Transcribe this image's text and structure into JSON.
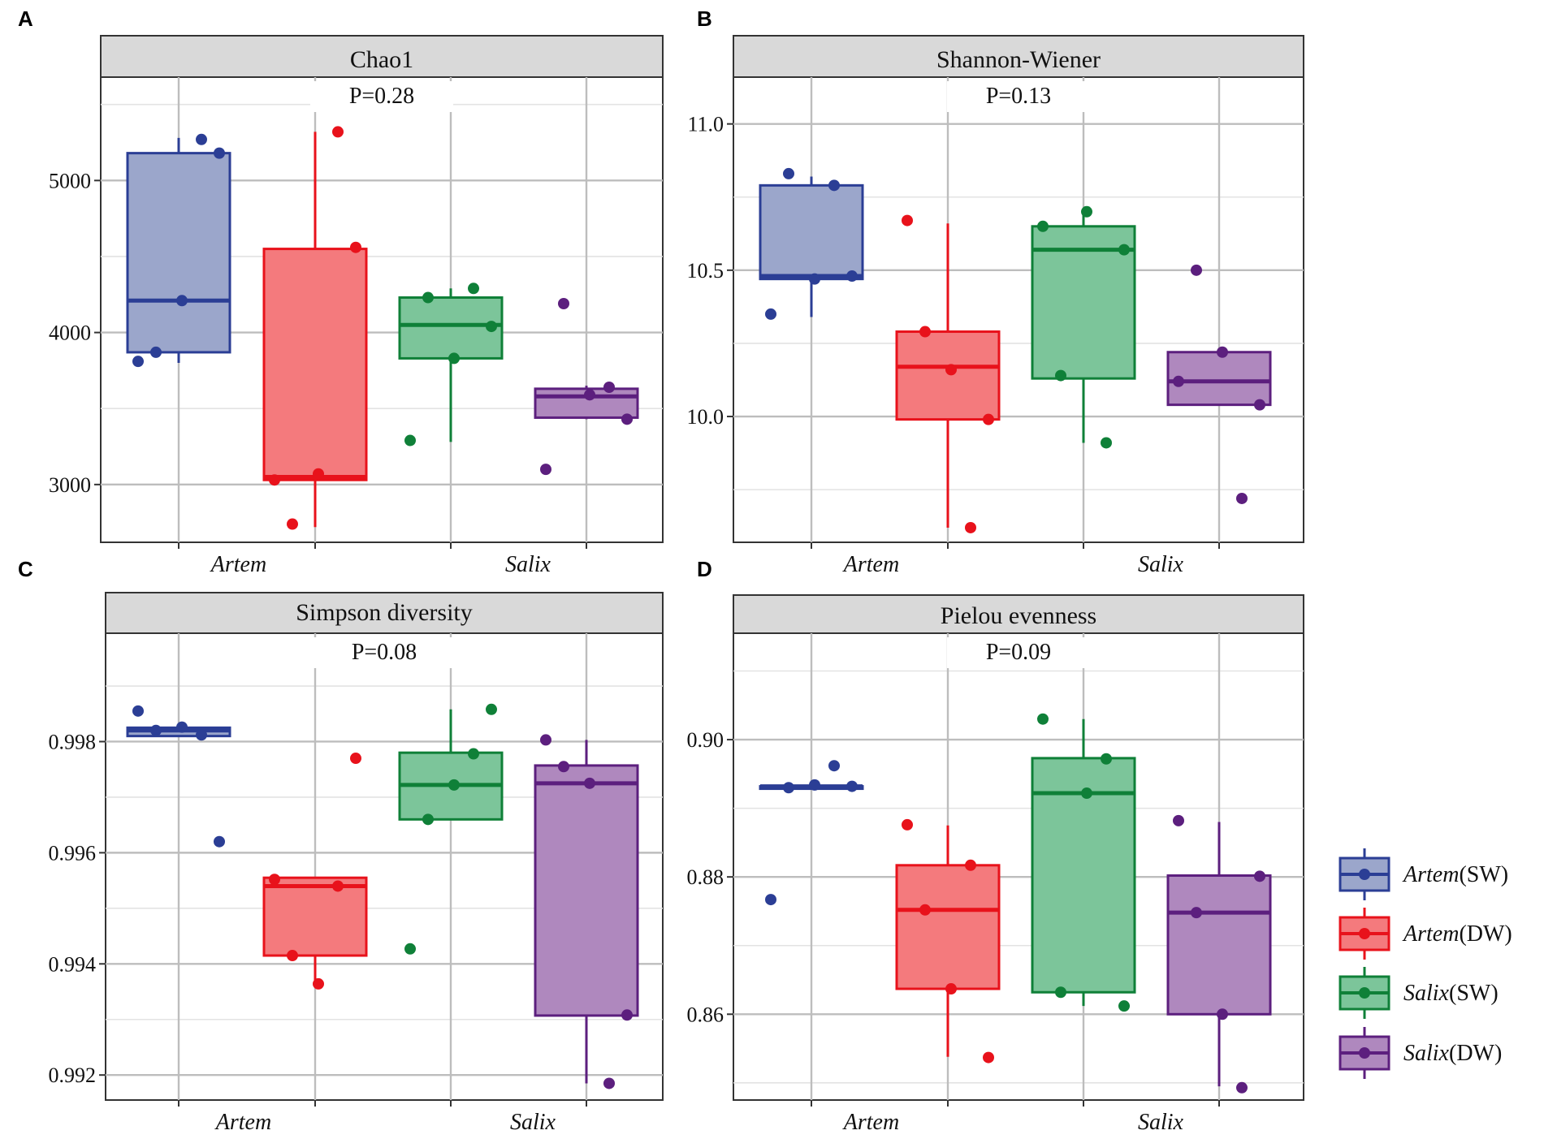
{
  "colors": {
    "artem_sw": "#2B3E95",
    "artem_dw": "#E8121B",
    "salix_sw": "#0F8038",
    "salix_dw": "#5C1F7E",
    "fill_artem_sw": "#9BA6CB",
    "fill_artem_dw": "#F47A7D",
    "fill_salix_sw": "#7CC59A",
    "fill_salix_dw": "#AF88BE"
  },
  "legend": {
    "items": [
      {
        "label_italic": "Artem",
        "label_rest": "(SW)",
        "color_key": "artem_sw"
      },
      {
        "label_italic": "Artem",
        "label_rest": "(DW)",
        "color_key": "artem_dw"
      },
      {
        "label_italic": "Salix",
        "label_rest": "(SW)",
        "color_key": "salix_sw"
      },
      {
        "label_italic": "Salix",
        "label_rest": "(DW)",
        "color_key": "salix_dw"
      }
    ]
  },
  "chart_data": [
    {
      "type": "box",
      "panel_letter": "A",
      "title": "Chao1",
      "p_value": "P=0.28",
      "categories": [
        "Artem",
        "Salix"
      ],
      "ylim": [
        2620,
        5680
      ],
      "yticks": [
        3000,
        4000,
        5000
      ],
      "ytick_labels": [
        "3000",
        "4000",
        "5000"
      ],
      "series": [
        {
          "name": "Artem(SW)",
          "color_key": "artem_sw",
          "box": {
            "min": 3800,
            "q1": 3870,
            "median": 4210,
            "q3": 5180,
            "max": 5280
          },
          "points": [
            3810,
            3870,
            5270,
            5180,
            4210
          ]
        },
        {
          "name": "Artem(DW)",
          "color_key": "artem_dw",
          "box": {
            "min": 2720,
            "q1": 3030,
            "median": 3050,
            "q3": 4550,
            "max": 5320
          },
          "points": [
            3030,
            2740,
            5320,
            4560,
            3070
          ]
        },
        {
          "name": "Salix(SW)",
          "color_key": "salix_sw",
          "box": {
            "min": 3280,
            "q1": 3830,
            "median": 4050,
            "q3": 4230,
            "max": 4290
          },
          "points": [
            3290,
            4230,
            4290,
            4040,
            3830
          ]
        },
        {
          "name": "Salix(DW)",
          "color_key": "salix_dw",
          "box": {
            "min": 3430,
            "q1": 3440,
            "median": 3580,
            "q3": 3630,
            "max": 3650
          },
          "points": [
            3100,
            4190,
            3640,
            3430,
            3590
          ]
        }
      ]
    },
    {
      "type": "box",
      "panel_letter": "B",
      "title": "Shannon-Wiener",
      "p_value": "P=0.13",
      "categories": [
        "Artem",
        "Salix"
      ],
      "ylim": [
        9.57,
        11.16
      ],
      "yticks": [
        10.0,
        10.5,
        11.0
      ],
      "ytick_labels": [
        "10.0",
        "10.5",
        "11.0"
      ],
      "series": [
        {
          "name": "Artem(SW)",
          "color_key": "artem_sw",
          "box": {
            "min": 10.34,
            "q1": 10.47,
            "median": 10.48,
            "q3": 10.79,
            "max": 10.82
          },
          "points": [
            10.35,
            10.83,
            10.79,
            10.48,
            10.47
          ]
        },
        {
          "name": "Artem(DW)",
          "color_key": "artem_dw",
          "box": {
            "min": 9.62,
            "q1": 9.99,
            "median": 10.17,
            "q3": 10.29,
            "max": 10.66
          },
          "points": [
            10.67,
            10.29,
            9.62,
            9.99,
            10.16
          ]
        },
        {
          "name": "Salix(SW)",
          "color_key": "salix_sw",
          "box": {
            "min": 9.91,
            "q1": 10.13,
            "median": 10.57,
            "q3": 10.65,
            "max": 10.7
          },
          "points": [
            10.65,
            10.14,
            9.91,
            10.57,
            10.7
          ]
        },
        {
          "name": "Salix(DW)",
          "color_key": "salix_dw",
          "box": {
            "min": 10.04,
            "q1": 10.04,
            "median": 10.12,
            "q3": 10.22,
            "max": 10.22
          },
          "points": [
            10.12,
            10.5,
            9.72,
            10.04,
            10.22
          ]
        }
      ]
    },
    {
      "type": "box",
      "panel_letter": "C",
      "title": "Simpson diversity",
      "p_value": "P=0.08",
      "categories": [
        "Artem",
        "Salix"
      ],
      "ylim": [
        0.99155,
        0.99995
      ],
      "yticks": [
        0.992,
        0.994,
        0.996,
        0.998
      ],
      "ytick_labels": [
        "0.992",
        "0.994",
        "0.996",
        "0.998"
      ],
      "series": [
        {
          "name": "Artem(SW)",
          "color_key": "artem_sw",
          "box": {
            "min": 0.9981,
            "q1": 0.9981,
            "median": 0.9982,
            "q3": 0.99825,
            "max": 0.99825
          },
          "points": [
            0.99855,
            0.9982,
            0.99812,
            0.9962,
            0.99826
          ]
        },
        {
          "name": "Artem(DW)",
          "color_key": "artem_dw",
          "box": {
            "min": 0.99365,
            "q1": 0.99415,
            "median": 0.9954,
            "q3": 0.99555,
            "max": 0.99555
          },
          "points": [
            0.99552,
            0.99415,
            0.9954,
            0.9977,
            0.99364
          ]
        },
        {
          "name": "Salix(SW)",
          "color_key": "salix_sw",
          "box": {
            "min": 0.9966,
            "q1": 0.9966,
            "median": 0.99722,
            "q3": 0.9978,
            "max": 0.99858
          },
          "points": [
            0.99427,
            0.9966,
            0.99778,
            0.99858,
            0.99722
          ]
        },
        {
          "name": "Salix(DW)",
          "color_key": "salix_dw",
          "box": {
            "min": 0.99185,
            "q1": 0.99307,
            "median": 0.99725,
            "q3": 0.99757,
            "max": 0.99803
          },
          "points": [
            0.99803,
            0.99755,
            0.99185,
            0.99308,
            0.99725
          ]
        }
      ]
    },
    {
      "type": "box",
      "panel_letter": "D",
      "title": "Pielou evenness",
      "p_value": "P=0.09",
      "categories": [
        "Artem",
        "Salix"
      ],
      "ylim": [
        0.8475,
        0.9155
      ],
      "yticks": [
        0.86,
        0.88,
        0.9
      ],
      "ytick_labels": [
        "0.86",
        "0.88",
        "0.90"
      ],
      "series": [
        {
          "name": "Artem(SW)",
          "color_key": "artem_sw",
          "box": {
            "min": 0.8932,
            "q1": 0.8932,
            "median": 0.8932,
            "q3": 0.8932,
            "max": 0.8932
          },
          "points": [
            0.8767,
            0.893,
            0.8962,
            0.8932,
            0.8934
          ]
        },
        {
          "name": "Artem(DW)",
          "color_key": "artem_dw",
          "box": {
            "min": 0.8538,
            "q1": 0.8637,
            "median": 0.8752,
            "q3": 0.8817,
            "max": 0.8875
          },
          "points": [
            0.8876,
            0.8752,
            0.8817,
            0.8537,
            0.8637
          ]
        },
        {
          "name": "Salix(SW)",
          "color_key": "salix_sw",
          "box": {
            "min": 0.8612,
            "q1": 0.8632,
            "median": 0.8922,
            "q3": 0.8973,
            "max": 0.903
          },
          "points": [
            0.903,
            0.8632,
            0.8972,
            0.8612,
            0.8922
          ]
        },
        {
          "name": "Salix(DW)",
          "color_key": "salix_dw",
          "box": {
            "min": 0.8495,
            "q1": 0.86,
            "median": 0.8748,
            "q3": 0.8802,
            "max": 0.888
          },
          "points": [
            0.8882,
            0.8748,
            0.8493,
            0.8801,
            0.86
          ]
        }
      ]
    }
  ]
}
